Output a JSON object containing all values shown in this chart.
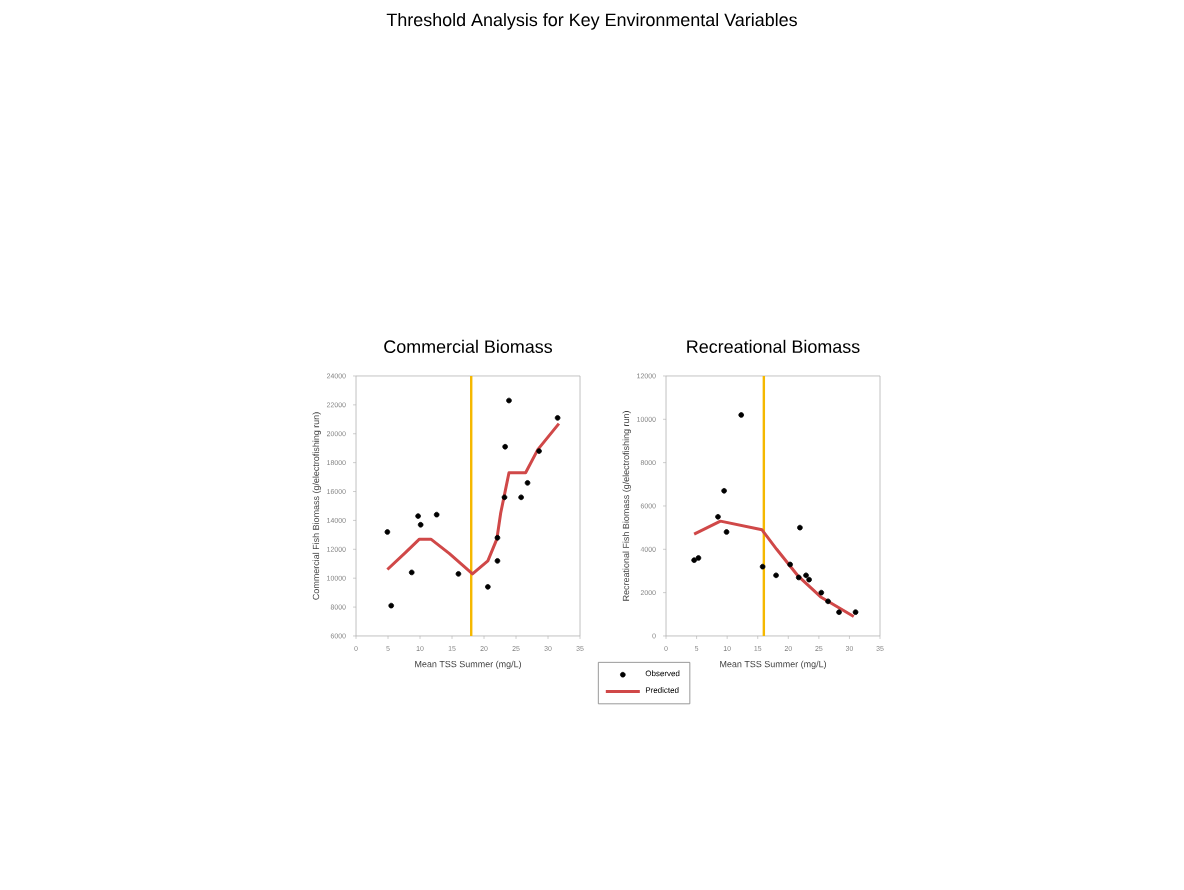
{
  "chart_data": [
    {
      "type": "scatter",
      "title": "Commercial Biomass",
      "xlabel": "Mean TSS Summer (mg/L)",
      "ylabel": "Commercial Fish Biomass (g/electrofishing run)",
      "annotations": [
        "Threshold Analysis for Key Environmental Variables"
      ],
      "xlim": [
        0,
        35
      ],
      "ylim": [
        6000,
        24000
      ],
      "xticks": [
        0,
        5,
        10,
        15,
        20,
        25,
        30,
        35
      ],
      "yticks": [
        6000,
        8000,
        10000,
        12000,
        14000,
        16000,
        18000,
        20000,
        22000,
        24000
      ],
      "legend": "bottom right",
      "marker": "circle",
      "ref_lines": [
        {
          "axis": "x",
          "value": 18,
          "color": "#f5b800"
        }
      ],
      "series": [
        {
          "name": "Observed",
          "type": "scatter",
          "color": "#000000",
          "x": [
            4.9,
            5.5,
            8.7,
            9.7,
            10.1,
            12.6,
            16.0,
            20.6,
            22.1,
            22.1,
            23.2,
            23.3,
            23.9,
            25.8,
            26.8,
            28.6,
            31.5
          ],
          "values": [
            13200,
            8100,
            10400,
            14300,
            13700,
            14400,
            10300,
            9400,
            11200,
            12800,
            15600,
            19100,
            22300,
            15600,
            16600,
            18800,
            21100
          ]
        },
        {
          "name": "Predicted",
          "type": "line",
          "marker": "none",
          "color": "#d04848",
          "x": [
            4.9,
            7.8,
            9.9,
            11.7,
            14.6,
            18.2,
            20.6,
            22.0,
            22.6,
            23.9,
            26.5,
            28.4,
            31.7
          ],
          "values": [
            10600,
            11800,
            12700,
            12700,
            11700,
            10300,
            11200,
            12700,
            14500,
            17300,
            17300,
            18900,
            20700
          ]
        }
      ]
    },
    {
      "type": "scatter",
      "title": "Recreational Biomass",
      "xlabel": "Mean TSS Summer (mg/L)",
      "ylabel": "Recreational Fish Biomass (g/electrofishing run)",
      "xlim": [
        0,
        35
      ],
      "ylim": [
        0,
        12000
      ],
      "xticks": [
        0,
        5,
        10,
        15,
        20,
        25,
        30,
        35
      ],
      "yticks": [
        0,
        2000,
        4000,
        6000,
        8000,
        10000,
        12000
      ],
      "legend": false,
      "marker": "circle",
      "ref_lines": [
        {
          "axis": "x",
          "value": 16,
          "color": "#f5b800"
        }
      ],
      "series": [
        {
          "type": "scatter",
          "color": "#000000",
          "x": [
            4.6,
            5.3,
            8.5,
            9.5,
            9.9,
            12.3,
            15.8,
            18.0,
            20.3,
            21.7,
            21.9,
            22.9,
            23.4,
            25.4,
            26.5,
            28.3,
            31.0
          ],
          "values": [
            3500,
            3600,
            5500,
            6700,
            4800,
            10200,
            3200,
            2800,
            3300,
            2700,
            5000,
            2800,
            2600,
            2000,
            1600,
            1100,
            1100
          ]
        },
        {
          "type": "line",
          "marker": "none",
          "color": "#d04848",
          "x": [
            4.6,
            8.9,
            12.3,
            15.7,
            18.1,
            21.5,
            25.3,
            30.7
          ],
          "values": [
            4700,
            5300,
            5100,
            4900,
            4000,
            2800,
            1800,
            900
          ]
        }
      ]
    }
  ]
}
